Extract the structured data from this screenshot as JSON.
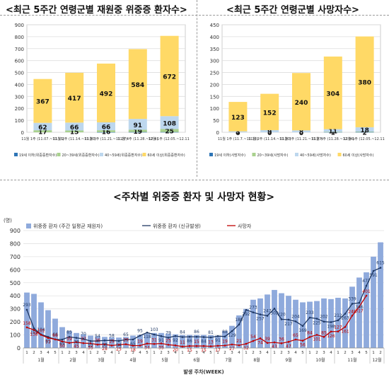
{
  "titles": {
    "left": "<최근 5주간 연령군별 재원중 위중증 환자수>",
    "right": "<최근 5주간 연령군별 사망자수>",
    "bottom": "<주차별 위중증 환자 및 사망자 현황>"
  },
  "colors": {
    "yellow": "#ffd966",
    "lightblue": "#bdd7ee",
    "green": "#a9d18e",
    "deepblue": "#2e75b6",
    "bar_blue": "#8faadc",
    "line_navy": "#1f3864",
    "line_red": "#c00000"
  },
  "chart_data": [
    {
      "type": "bar",
      "stacked": true,
      "categories": [
        "11월 1주 (11.07.~11.13)",
        "11월 2주 (11.14.~11.20)",
        "11월 3주 (11.21.~11.27)",
        "11월 4주 (11.28.~12.4)",
        "12월 1주 (12.05.~12.11)"
      ],
      "series": [
        {
          "name": "19세 이하(위중증환자수)",
          "values": [
            0,
            0,
            1,
            2,
            2
          ],
          "color": "deepblue"
        },
        {
          "name": "20~39세(위중증환자수)",
          "values": [
            17,
            15,
            16,
            19,
            25
          ],
          "color": "green"
        },
        {
          "name": "40~59세(위중증환자수)",
          "values": [
            62,
            66,
            66,
            91,
            108
          ],
          "color": "lightblue"
        },
        {
          "name": "60세 이상(위중증환자수)",
          "values": [
            367,
            417,
            492,
            584,
            672
          ],
          "color": "yellow"
        }
      ],
      "ylim": [
        0,
        900
      ],
      "yticks": [
        0,
        100,
        200,
        300,
        400,
        500,
        600,
        700,
        800,
        900
      ],
      "grid": true,
      "legend": "bottom"
    },
    {
      "type": "bar",
      "stacked": true,
      "categories": [
        "11월 1주 (11.7.~11.13)",
        "11월 2주 (11.14.~11.20)",
        "11월 3주 (11.21.~11.27)",
        "11월 4주 (11.28.~12.04)",
        "12월 1주 (12.05.~12.11)"
      ],
      "series": [
        {
          "name": "19세 이하(사망자수)",
          "values": [
            0,
            0,
            0,
            1,
            1
          ],
          "color": "deepblue"
        },
        {
          "name": "20~39세(사망자수)",
          "values": [
            0,
            0,
            0,
            1,
            2
          ],
          "color": "green"
        },
        {
          "name": "40~59세(사망자수)",
          "values": [
            4,
            9,
            8,
            11,
            18
          ],
          "color": "lightblue"
        },
        {
          "name": "60세 이상(사망자수)",
          "values": [
            123,
            152,
            240,
            304,
            380
          ],
          "color": "yellow"
        }
      ],
      "ylim": [
        0,
        450
      ],
      "yticks": [
        0,
        50,
        100,
        150,
        200,
        250,
        300,
        350,
        400,
        450
      ],
      "grid": true,
      "legend": "bottom"
    },
    {
      "type": "bar",
      "ylabel": "(명)",
      "xlabel": "발생 주차(WEEK)",
      "ylim": [
        0,
        900
      ],
      "yticks": [
        0,
        100,
        200,
        300,
        400,
        500,
        600,
        700,
        800,
        900
      ],
      "grid": true,
      "legend": "top",
      "week_labels": [
        "1",
        "2",
        "3",
        "4",
        "5",
        "1",
        "2",
        "3",
        "4",
        "1",
        "2",
        "3",
        "4",
        "1",
        "2",
        "3",
        "4",
        "5",
        "1",
        "2",
        "3",
        "4",
        "1",
        "2",
        "3",
        "4",
        "5",
        "1",
        "2",
        "3",
        "4",
        "1",
        "2",
        "3",
        "4",
        "1",
        "2",
        "3",
        "4",
        "5",
        "1",
        "2",
        "3",
        "4",
        "1",
        "2",
        "3",
        "4",
        "5",
        "1",
        "2"
      ],
      "months": [
        {
          "label": "1월",
          "start": 0,
          "count": 5
        },
        {
          "label": "2월",
          "start": 5,
          "count": 4
        },
        {
          "label": "3월",
          "start": 9,
          "count": 4
        },
        {
          "label": "4월",
          "start": 13,
          "count": 5
        },
        {
          "label": "5월",
          "start": 18,
          "count": 4
        },
        {
          "label": "6월",
          "start": 22,
          "count": 5
        },
        {
          "label": "7월",
          "start": 27,
          "count": 4
        },
        {
          "label": "8월",
          "start": 31,
          "count": 4
        },
        {
          "label": "9월",
          "start": 35,
          "count": 5
        },
        {
          "label": "10월",
          "start": 40,
          "count": 4
        },
        {
          "label": "11월",
          "start": 44,
          "count": 5
        },
        {
          "label": "12월",
          "start": 49,
          "count": 2
        }
      ],
      "series": [
        {
          "name": "위중증 환자 (주간 일평균 재원자)",
          "kind": "bar",
          "color": "bar_blue",
          "values": [
            425,
            415,
            350,
            290,
            225,
            160,
            130,
            115,
            105,
            95,
            90,
            85,
            82,
            80,
            85,
            95,
            100,
            110,
            115,
            115,
            110,
            105,
            100,
            100,
            100,
            100,
            98,
            95,
            130,
            170,
            250,
            300,
            370,
            380,
            410,
            445,
            420,
            400,
            370,
            350,
            355,
            360,
            380,
            375,
            385,
            380,
            470,
            540,
            580,
            700,
            810
          ]
        },
        {
          "name": "위중증 환자 (신규발생)",
          "kind": "line",
          "color": "line_navy",
          "values": [
            293,
            151,
            104,
            85,
            66,
            65,
            85,
            78,
            70,
            53,
            54,
            58,
            58,
            54,
            65,
            65,
            95,
            118,
            103,
            91,
            79,
            92,
            84,
            86,
            86,
            84,
            81,
            91,
            88,
            129,
            180,
            292,
            273,
            257,
            247,
            302,
            220,
            217,
            204,
            169,
            233,
            225,
            202,
            198,
            212,
            263,
            339,
            346,
            477,
            591,
            615
          ]
        },
        {
          "name": "사망자",
          "kind": "line",
          "color": "line_red",
          "values": [
            158,
            138,
            101,
            77,
            66,
            50,
            39,
            45,
            37,
            35,
            26,
            28,
            19,
            25,
            29,
            18,
            19,
            34,
            31,
            35,
            25,
            20,
            11,
            15,
            15,
            15,
            13,
            17,
            19,
            27,
            21,
            32,
            54,
            74,
            39,
            43,
            36,
            47,
            65,
            56,
            84,
            101,
            85,
            126,
            127,
            161,
            248,
            317,
            401,
            null,
            null
          ]
        }
      ],
      "data_labels": {
        "bars": [
          {
            "i": 0,
            "v": "293"
          },
          {
            "i": 1,
            "v": "151"
          },
          {
            "i": 2,
            "v": "104"
          },
          {
            "i": 3,
            "v": "85"
          },
          {
            "i": 4,
            "v": "66"
          },
          {
            "i": 5,
            "v": "65"
          },
          {
            "i": 6,
            "v": "85"
          },
          {
            "i": 7,
            "v": "78"
          },
          {
            "i": 8,
            "v": "70"
          },
          {
            "i": 9,
            "v": "53"
          },
          {
            "i": 10,
            "v": "54"
          },
          {
            "i": 11,
            "v": "58"
          },
          {
            "i": 12,
            "v": "58"
          },
          {
            "i": 13,
            "v": "54"
          },
          {
            "i": 14,
            "v": "65"
          },
          {
            "i": 15,
            "v": "65"
          },
          {
            "i": 16,
            "v": "95"
          },
          {
            "i": 17,
            "v": "118"
          },
          {
            "i": 18,
            "v": "103"
          },
          {
            "i": 19,
            "v": "91"
          },
          {
            "i": 20,
            "v": "79"
          },
          {
            "i": 21,
            "v": "92"
          },
          {
            "i": 22,
            "v": "84"
          },
          {
            "i": 23,
            "v": "86"
          },
          {
            "i": 24,
            "v": "86"
          },
          {
            "i": 25,
            "v": "84"
          },
          {
            "i": 26,
            "v": "81"
          },
          {
            "i": 27,
            "v": "91"
          },
          {
            "i": 28,
            "v": "88"
          },
          {
            "i": 29,
            "v": "129"
          },
          {
            "i": 30,
            "v": "180"
          },
          {
            "i": 31,
            "v": "292"
          },
          {
            "i": 32,
            "v": "273"
          },
          {
            "i": 33,
            "v": "257"
          },
          {
            "i": 34,
            "v": "247"
          },
          {
            "i": 35,
            "v": "302"
          },
          {
            "i": 36,
            "v": "220"
          },
          {
            "i": 37,
            "v": "217"
          },
          {
            "i": 38,
            "v": "204"
          },
          {
            "i": 39,
            "v": "169"
          },
          {
            "i": 40,
            "v": "233"
          },
          {
            "i": 41,
            "v": "225"
          },
          {
            "i": 42,
            "v": "202"
          },
          {
            "i": 43,
            "v": "198"
          },
          {
            "i": 44,
            "v": "212"
          },
          {
            "i": 45,
            "v": "263"
          },
          {
            "i": 46,
            "v": "339"
          },
          {
            "i": 47,
            "v": "346"
          },
          {
            "i": 48,
            "v": "477"
          },
          {
            "i": 49,
            "v": "591"
          },
          {
            "i": 50,
            "v": "615"
          }
        ]
      }
    }
  ]
}
